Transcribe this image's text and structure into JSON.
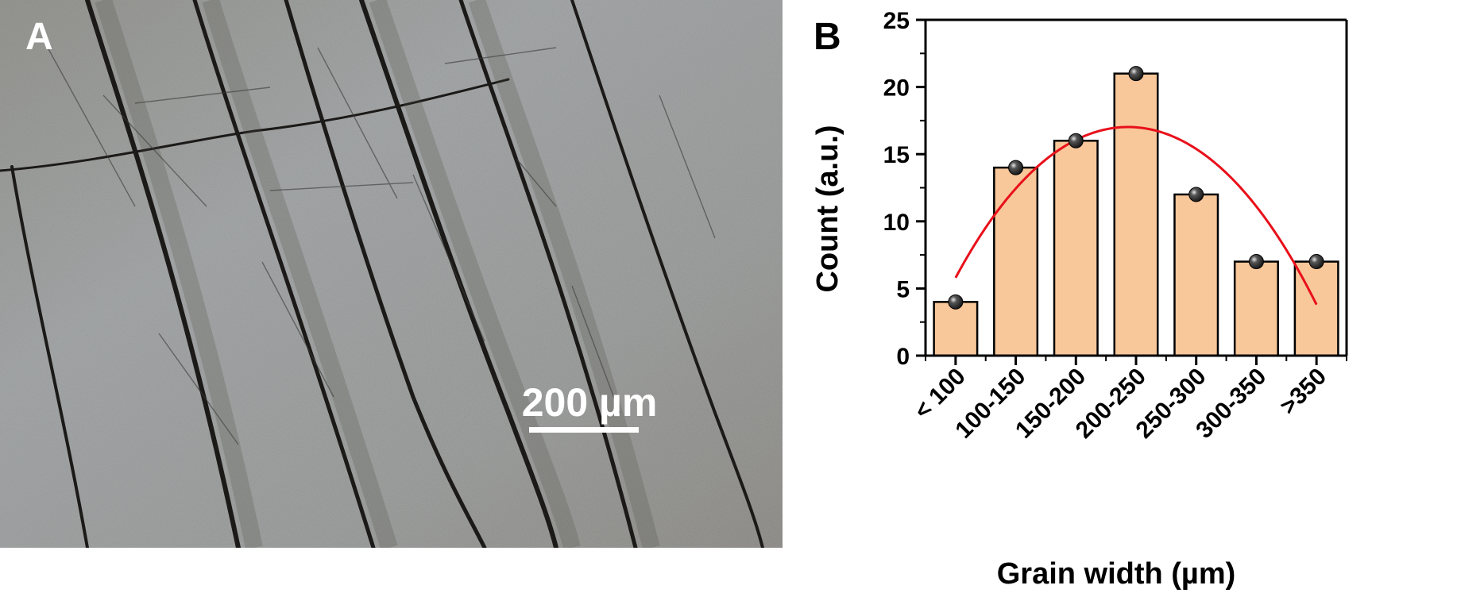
{
  "panel_a": {
    "label": "A",
    "scale_bar_label": "200 µm"
  },
  "panel_b": {
    "label": "B"
  },
  "colors": {
    "bar_fill": "#f8c79a",
    "bar_stroke": "#000000",
    "fit_curve": "#e8101a",
    "marker": "#1a1a1a"
  },
  "chart_data": {
    "type": "bar",
    "title": "",
    "xlabel": "Grain width (µm)",
    "ylabel": "Count (a.u.)",
    "categories": [
      "< 100",
      "100-150",
      "150-200",
      "200-250",
      "250-300",
      "300-350",
      ">350"
    ],
    "series": [
      {
        "values": [
          4,
          14,
          16,
          21,
          12,
          7,
          7
        ]
      }
    ],
    "fit_curve": {
      "type": "polynomial",
      "points": [
        {
          "category_index": 0,
          "y": 5.8
        },
        {
          "category_index": 1.5,
          "y": 14.6
        },
        {
          "category_index": 3,
          "y": 17.0
        },
        {
          "category_index": 4.5,
          "y": 13.6
        },
        {
          "category_index": 6,
          "y": 3.8
        }
      ]
    },
    "ylim": [
      0,
      25
    ],
    "yticks": [
      0,
      5,
      10,
      15,
      20,
      25
    ],
    "grid": false,
    "legend": "none"
  }
}
